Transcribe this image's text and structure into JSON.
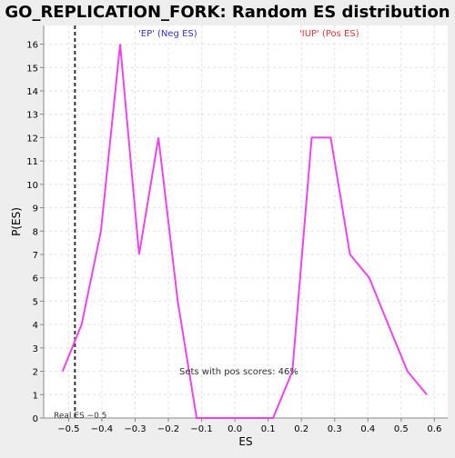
{
  "chart_data": {
    "type": "line",
    "title": "GO_REPLICATION_FORK: Random ES distribution",
    "xlabel": "ES",
    "ylabel": "P(ES)",
    "xlim": [
      -0.575,
      0.64
    ],
    "ylim": [
      0,
      16.8
    ],
    "xticks": [
      -0.5,
      -0.4,
      -0.3,
      -0.2,
      -0.1,
      0.0,
      0.1,
      0.2,
      0.3,
      0.4,
      0.5,
      0.6
    ],
    "xtick_labels": [
      "−0.5",
      "−0.4",
      "−0.3",
      "−0.2",
      "−0.1",
      "0.0",
      "0.1",
      "0.2",
      "0.3",
      "0.4",
      "0.5",
      "0.6"
    ],
    "yticks": [
      0,
      1,
      2,
      3,
      4,
      5,
      6,
      7,
      8,
      9,
      10,
      11,
      12,
      13,
      14,
      15,
      16
    ],
    "grid": true,
    "series": [
      {
        "color": "#ee44ee",
        "x": [
          -0.518,
          -0.461,
          -0.403,
          -0.345,
          -0.288,
          -0.23,
          -0.172,
          -0.115,
          -0.057,
          0.0,
          0.058,
          0.115,
          0.173,
          0.231,
          0.288,
          0.346,
          0.404,
          0.461,
          0.519,
          0.577
        ],
        "y": [
          2,
          4,
          8,
          16,
          7,
          12,
          5,
          0,
          0,
          0,
          0,
          0,
          2,
          12,
          12,
          7,
          6,
          4,
          2,
          1
        ]
      }
    ],
    "reference_line": {
      "x": -0.481,
      "style": "dashed",
      "color": "#333333"
    },
    "annotations": {
      "neg_label": "'EP' (Neg ES)",
      "neg_color": "#3333cc",
      "pos_label": "'IUP' (Pos ES)",
      "pos_color": "#ee3333",
      "pos_scores": "Sets with pos scores: 46%",
      "real_es": "Real ES −0.5"
    }
  }
}
